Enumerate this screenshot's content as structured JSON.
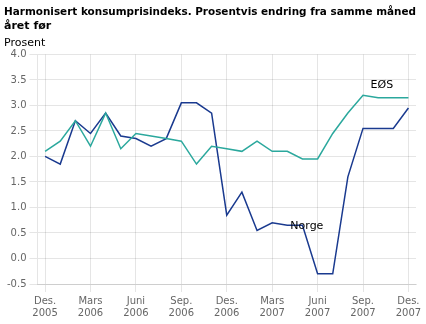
{
  "chart_data": {
    "type": "line",
    "title": "Harmonisert konsumprisindeks. Prosentvis endring fra samme måned\nåret før",
    "y_label": "Prosent",
    "categories": [
      "Des.\n2005",
      null,
      null,
      "Mars\n2006",
      null,
      null,
      "Juni\n2006",
      null,
      null,
      "Sep.\n2006",
      null,
      null,
      "Des.\n2006",
      null,
      null,
      "Mars\n2007",
      null,
      null,
      "Juni\n2007",
      null,
      null,
      "Sep.\n2007",
      null,
      null,
      "Des.\n2007"
    ],
    "series": [
      {
        "name": "EØS",
        "color": "#2ba89d",
        "values": [
          2.1,
          2.3,
          2.7,
          2.2,
          2.85,
          2.15,
          2.45,
          2.4,
          2.35,
          2.3,
          1.85,
          2.2,
          2.15,
          2.1,
          2.3,
          2.1,
          2.1,
          1.95,
          1.95,
          2.45,
          2.85,
          3.2,
          3.15,
          3.15,
          3.15
        ]
      },
      {
        "name": "Norge",
        "color": "#1a3a8f",
        "values": [
          2.0,
          1.85,
          2.7,
          2.45,
          2.85,
          2.4,
          2.35,
          2.2,
          2.35,
          3.05,
          3.05,
          2.85,
          0.85,
          1.3,
          0.55,
          0.7,
          0.65,
          0.65,
          -0.3,
          -0.3,
          1.6,
          2.55,
          2.55,
          2.55,
          2.95
        ]
      }
    ],
    "annotations": [
      {
        "text": "EØS",
        "x": 21.5,
        "y": 3.35
      },
      {
        "text": "Norge",
        "x": 16.2,
        "y": 0.58
      }
    ],
    "ylim": [
      -0.5,
      4.0
    ],
    "yticks": [
      -0.5,
      {
        "value": 0.0,
        "label": "0.0"
      },
      0.5,
      {
        "value": 1.0,
        "label": "1.0"
      },
      1.5,
      {
        "value": 2.0,
        "label": "2.0"
      },
      2.5,
      {
        "value": 3.0,
        "label": "3.0"
      },
      3.5,
      {
        "value": 4.0,
        "label": "4.0"
      }
    ],
    "grid": true
  }
}
